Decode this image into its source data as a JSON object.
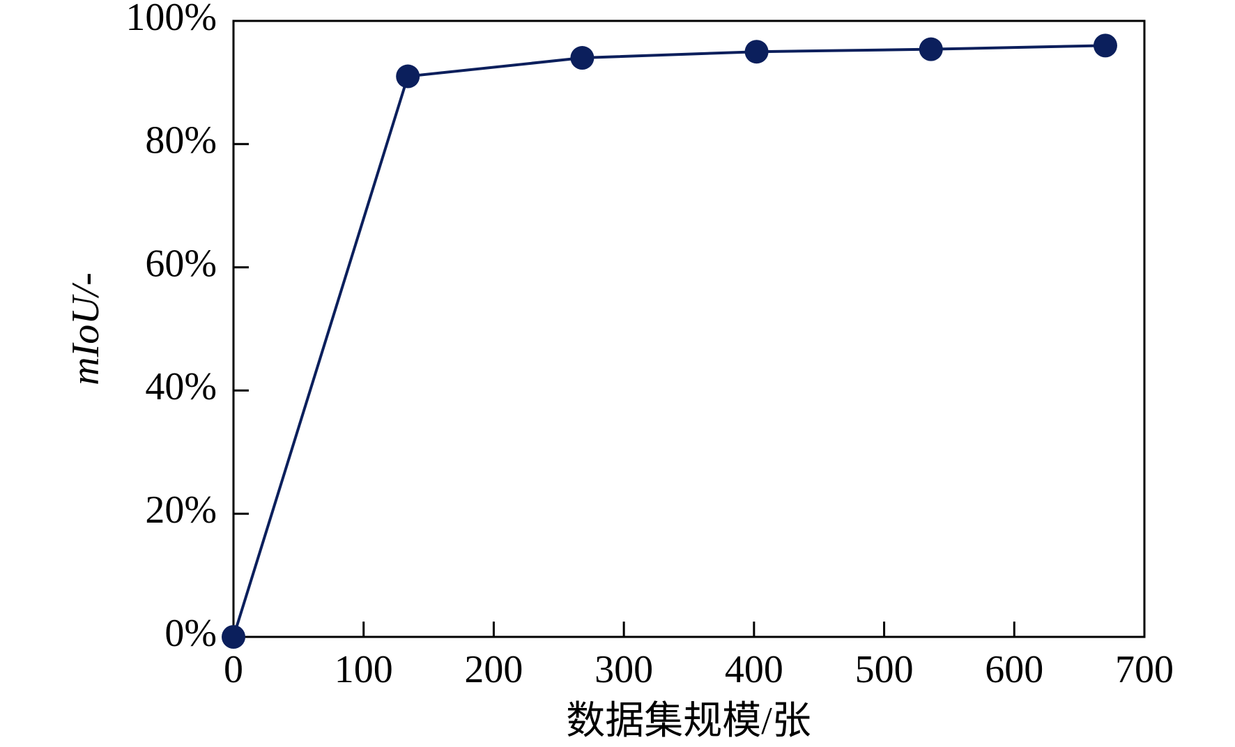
{
  "chart_data": {
    "type": "line",
    "x_label": "数据集规模/张",
    "y_label": "mIoU/-",
    "x": [
      0,
      134,
      268,
      402,
      536,
      670
    ],
    "series": [
      {
        "color": "#0b1f5c",
        "values": [
          0,
          91,
          94,
          95,
          95.4,
          96
        ]
      }
    ],
    "xlim": [
      0,
      700
    ],
    "xticks": [
      0,
      100,
      200,
      300,
      400,
      500,
      600,
      700
    ],
    "ylim": [
      0,
      100
    ],
    "yticks": [
      {
        "value": 0,
        "label": "0%"
      },
      {
        "value": 20,
        "label": "20%"
      },
      {
        "value": 40,
        "label": "40%"
      },
      {
        "value": 60,
        "label": "60%"
      },
      {
        "value": 80,
        "label": "80%"
      },
      {
        "value": 100,
        "label": "100%"
      }
    ]
  }
}
